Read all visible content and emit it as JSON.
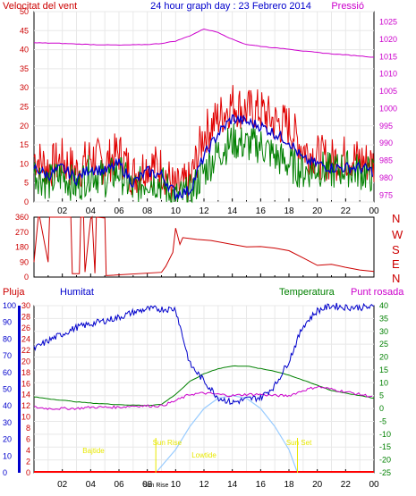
{
  "colors": {
    "wind": "#e00000",
    "wind_avg": "#0000cc",
    "wind_dir": "#cc0000",
    "wind_dir_labels": "#cc0000",
    "gust": "#008000",
    "pressure": "#cc00cc",
    "humidity": "#0000cc",
    "temperature": "#008000",
    "dewpoint": "#cc00cc",
    "solar": "#99ccff",
    "rain": "#ff0000",
    "annotation": "#e8e800",
    "grid": "#e8e8e8",
    "axis_rain": "#cc0000",
    "axis_humidity": "#0000cc",
    "axis_temp": "#008000",
    "axis_pressure": "#cc00cc"
  },
  "chart_data": [
    {
      "type": "line",
      "title": "24 hour graph day : 23 Febrero 2014",
      "left_label": "Velocitat del vent",
      "right_label": "Pressió",
      "x_ticks": [
        "02",
        "04",
        "06",
        "08",
        "10",
        "12",
        "14",
        "16",
        "18",
        "20",
        "22",
        "00"
      ],
      "y_left_ticks": [
        0,
        5,
        10,
        15,
        20,
        25,
        30,
        35,
        40,
        45,
        50
      ],
      "y_right_ticks": [
        975,
        980,
        985,
        990,
        995,
        1000,
        1005,
        1010,
        1015,
        1020,
        1025
      ],
      "ylim_left": [
        0,
        50
      ],
      "ylim_right": [
        973,
        1028
      ],
      "xlim_hours": [
        0,
        24
      ],
      "grid": true,
      "series": [
        {
          "key": "pressure",
          "axis": "right",
          "x": [
            0,
            2,
            4,
            6,
            8,
            9,
            10,
            11,
            12,
            13,
            14,
            15,
            16,
            17,
            18,
            19,
            20,
            21,
            22,
            23,
            24
          ],
          "values": [
            1019,
            1018.8,
            1018.5,
            1018.3,
            1018.5,
            1018.8,
            1019.5,
            1021,
            1023,
            1022,
            1020,
            1018.5,
            1018,
            1017.5,
            1017.2,
            1016.6,
            1016.2,
            1015.8,
            1015.5,
            1015.2,
            1014.8
          ]
        },
        {
          "key": "wind",
          "x": [
            0,
            1,
            2,
            3,
            4,
            5,
            6,
            7,
            8,
            9,
            10,
            11,
            12,
            13,
            14,
            15,
            16,
            17,
            18,
            19,
            20,
            21,
            22,
            23,
            24
          ],
          "values": [
            12,
            9,
            11,
            8,
            12,
            10,
            13,
            7,
            10,
            9,
            3,
            5,
            18,
            22,
            26,
            24,
            24,
            21,
            20,
            14,
            12,
            11,
            12,
            11,
            10
          ]
        },
        {
          "key": "wind_avg",
          "x": [
            0,
            1,
            2,
            3,
            4,
            5,
            6,
            7,
            8,
            9,
            10,
            11,
            12,
            13,
            14,
            15,
            16,
            17,
            18,
            19,
            20,
            21,
            22,
            23,
            24
          ],
          "values": [
            9,
            7,
            9,
            6,
            9,
            8,
            10,
            5,
            8,
            7,
            2,
            3,
            12,
            18,
            22,
            21,
            20,
            18,
            16,
            11,
            10,
            9,
            9,
            9,
            8
          ]
        },
        {
          "key": "gust",
          "x": [
            0,
            1,
            2,
            3,
            4,
            5,
            6,
            7,
            8,
            9,
            10,
            11,
            12,
            13,
            14,
            15,
            16,
            17,
            18,
            19,
            20,
            21,
            22,
            23,
            24
          ],
          "values": [
            8,
            5,
            7,
            4,
            8,
            6,
            8,
            3,
            6,
            5,
            1,
            2,
            8,
            13,
            16,
            15,
            15,
            12,
            10,
            8,
            9,
            8,
            9,
            8,
            7
          ]
        }
      ]
    },
    {
      "type": "line",
      "title": "",
      "y_ticks": [
        0,
        90,
        180,
        270,
        360
      ],
      "ylim": [
        0,
        360
      ],
      "right_labels": [
        "N",
        "W",
        "S",
        "E",
        "N"
      ],
      "x_ticks": [
        "02",
        "04",
        "06",
        "08",
        "10",
        "12",
        "14",
        "16",
        "18",
        "20",
        "22",
        "00"
      ],
      "series": [
        {
          "key": "wind_dir",
          "x": [
            0,
            0.3,
            0.4,
            1.0,
            1.1,
            2.6,
            2.7,
            3.2,
            3.3,
            3.5,
            3.6,
            4.0,
            4.1,
            4.3,
            4.4,
            5.0,
            5.1,
            9.0,
            9.3,
            9.8,
            10.0,
            10.3,
            10.5,
            11.5,
            12.5,
            14,
            15,
            16,
            17,
            18,
            19,
            20,
            21,
            22,
            23,
            24
          ],
          "values": [
            90,
            360,
            360,
            90,
            360,
            360,
            20,
            20,
            360,
            360,
            30,
            360,
            360,
            30,
            360,
            360,
            15,
            20,
            60,
            150,
            290,
            200,
            240,
            230,
            220,
            200,
            190,
            180,
            170,
            160,
            120,
            80,
            70,
            55,
            40,
            30
          ]
        }
      ]
    },
    {
      "type": "line",
      "left_labels": [
        "Pluja",
        "Humitat"
      ],
      "right_labels": [
        "Temperatura",
        "Punt rosada"
      ],
      "y_rain_ticks": [
        0,
        2,
        4,
        6,
        8,
        10,
        12,
        14,
        16,
        18,
        20,
        22,
        24,
        26,
        28,
        30
      ],
      "y_humidity_ticks": [
        0,
        10,
        20,
        30,
        40,
        50,
        60,
        70,
        80,
        90,
        100
      ],
      "y_temp_ticks": [
        40,
        35,
        30,
        25,
        20,
        15,
        10,
        5,
        0,
        -5,
        -10,
        -15,
        -20,
        -25
      ],
      "ylim_temp": [
        -25,
        40
      ],
      "ylim_humidity": [
        0,
        100
      ],
      "x_ticks": [
        "02",
        "04",
        "06",
        "08",
        "Sun Rise",
        "10",
        "12",
        "14",
        "16",
        "18",
        "20",
        "22",
        "00"
      ],
      "annotations": [
        "Bajtide",
        "Sun Rise",
        "Lowtide",
        "Sun Set"
      ],
      "series": [
        {
          "key": "humidity",
          "x": [
            0,
            1,
            2,
            3,
            4,
            5,
            6,
            7,
            8,
            9,
            10,
            11,
            12,
            13,
            14,
            15,
            16,
            17,
            18,
            19,
            20,
            21,
            22,
            23,
            24
          ],
          "values": [
            74,
            79,
            83,
            87,
            89,
            91,
            93,
            96,
            98,
            98,
            98,
            65,
            55,
            45,
            42,
            44,
            45,
            52,
            67,
            88,
            97,
            100,
            99,
            99,
            99
          ]
        },
        {
          "key": "temperature",
          "x": [
            0,
            1,
            2,
            3,
            4,
            5,
            6,
            7,
            8,
            9,
            10,
            11,
            12,
            13,
            14,
            15,
            16,
            17,
            18,
            19,
            20,
            21,
            22,
            23,
            24
          ],
          "values": [
            4.5,
            3.8,
            3.2,
            2.6,
            2.1,
            1.8,
            1.5,
            1.3,
            1.2,
            1.6,
            5.5,
            10.5,
            13.5,
            15.5,
            16.5,
            16.5,
            15.5,
            14.5,
            13,
            11,
            9,
            7,
            6,
            5,
            4
          ]
        },
        {
          "key": "dewpoint",
          "x": [
            0,
            1,
            2,
            3,
            4,
            5,
            6,
            7,
            8,
            9,
            10,
            11,
            12,
            13,
            14,
            15,
            16,
            17,
            18,
            19,
            20,
            21,
            22,
            23,
            24
          ],
          "values": [
            0.5,
            0,
            0,
            0,
            0.5,
            0.5,
            0.5,
            1,
            1,
            1,
            3,
            5.5,
            6,
            5.5,
            5,
            5.5,
            5.5,
            5,
            5,
            7,
            8.5,
            7.5,
            6.5,
            5.5,
            4.5
          ]
        },
        {
          "key": "solar",
          "axis": "temp",
          "x": [
            8.6,
            10,
            11,
            12,
            13,
            14,
            15,
            16,
            17,
            18,
            18.6
          ],
          "values": [
            -25,
            -16,
            -7,
            0,
            4,
            5,
            4,
            0,
            -7,
            -16,
            -25
          ]
        },
        {
          "key": "rain",
          "x": [
            0,
            24
          ],
          "values": [
            0,
            0
          ]
        }
      ]
    }
  ]
}
